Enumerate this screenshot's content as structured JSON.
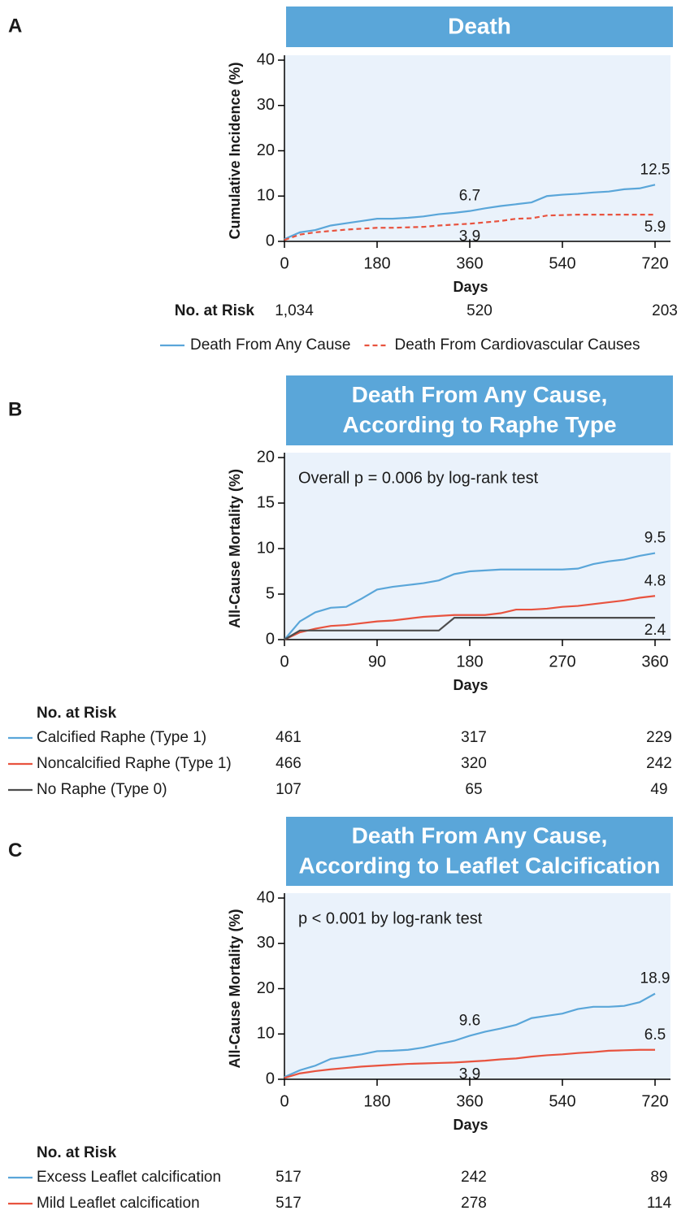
{
  "chart_data": [
    {
      "type": "line",
      "panel": "A",
      "title_lines": [
        "Death"
      ],
      "y_label": "Cumulative Incidence (%)",
      "x_label": "Days",
      "xlim": [
        0,
        750
      ],
      "xticks": [
        0,
        180,
        360,
        540,
        720
      ],
      "ylim": [
        0,
        40
      ],
      "yticks": [
        0,
        10,
        20,
        30,
        40
      ],
      "x": [
        0,
        30,
        60,
        90,
        120,
        150,
        180,
        210,
        240,
        270,
        300,
        330,
        360,
        390,
        420,
        450,
        480,
        510,
        540,
        570,
        600,
        630,
        660,
        690,
        720
      ],
      "series": [
        {
          "name": "Death From Any Cause",
          "color": "#5aa6d9",
          "dash": false,
          "values": [
            0.5,
            2,
            2.5,
            3.5,
            4,
            4.5,
            5,
            5,
            5.2,
            5.5,
            6,
            6.3,
            6.7,
            7.3,
            7.8,
            8.2,
            8.6,
            10,
            10.3,
            10.5,
            10.8,
            11,
            11.5,
            11.7,
            12.5
          ]
        },
        {
          "name": "Death From Cardiovascular Causes",
          "color": "#e8533f",
          "dash": true,
          "values": [
            0.3,
            1.5,
            2,
            2.3,
            2.6,
            2.8,
            3,
            3,
            3.1,
            3.2,
            3.5,
            3.7,
            3.9,
            4.2,
            4.5,
            5,
            5.1,
            5.7,
            5.8,
            5.9,
            5.9,
            5.9,
            5.9,
            5.9,
            5.9
          ]
        }
      ],
      "annotations": [
        {
          "text": "6.7",
          "x": 360,
          "y": 6.7,
          "pos": "above"
        },
        {
          "text": "3.9",
          "x": 360,
          "y": 3.9,
          "pos": "below"
        },
        {
          "text": "12.5",
          "x": 720,
          "y": 12.5,
          "pos": "above"
        },
        {
          "text": "5.9",
          "x": 720,
          "y": 5.9,
          "pos": "below"
        }
      ],
      "risk_label": "No. at Risk",
      "risk_x": [
        0,
        360,
        720
      ],
      "at_risk": [
        1034,
        520,
        203
      ],
      "at_risk_labels": [
        "1,034",
        "520",
        "203"
      ]
    },
    {
      "type": "line",
      "panel": "B",
      "title_lines": [
        "Death From Any Cause,",
        "According to Raphe Type"
      ],
      "y_label": "All-Cause Mortality (%)",
      "x_label": "Days",
      "xlim": [
        0,
        375
      ],
      "xticks": [
        0,
        90,
        180,
        270,
        360
      ],
      "ylim": [
        0,
        20
      ],
      "yticks": [
        0,
        5,
        10,
        15,
        20
      ],
      "note": "Overall p = 0.006 by log-rank test",
      "x": [
        0,
        15,
        30,
        45,
        60,
        75,
        90,
        105,
        120,
        135,
        150,
        165,
        180,
        195,
        210,
        225,
        240,
        255,
        270,
        285,
        300,
        315,
        330,
        345,
        360
      ],
      "series": [
        {
          "name": "Calcified Raphe (Type 1)",
          "color": "#5aa6d9",
          "dash": false,
          "values": [
            0,
            2,
            3,
            3.5,
            3.6,
            4.5,
            5.5,
            5.8,
            6,
            6.2,
            6.5,
            7.2,
            7.5,
            7.6,
            7.7,
            7.7,
            7.7,
            7.7,
            7.7,
            7.8,
            8.3,
            8.6,
            8.8,
            9.2,
            9.5
          ],
          "at_risk": [
            461,
            317,
            229
          ]
        },
        {
          "name": "Noncalcified Raphe (Type 1)",
          "color": "#e8533f",
          "dash": false,
          "values": [
            0,
            0.8,
            1.2,
            1.5,
            1.6,
            1.8,
            2,
            2.1,
            2.3,
            2.5,
            2.6,
            2.7,
            2.7,
            2.7,
            2.9,
            3.3,
            3.3,
            3.4,
            3.6,
            3.7,
            3.9,
            4.1,
            4.3,
            4.6,
            4.8
          ],
          "at_risk": [
            466,
            320,
            242
          ]
        },
        {
          "name": "No Raphe (Type 0)",
          "color": "#4d4d4d",
          "dash": false,
          "values": [
            0,
            1,
            1,
            1,
            1,
            1,
            1,
            1,
            1,
            1,
            1,
            2.4,
            2.4,
            2.4,
            2.4,
            2.4,
            2.4,
            2.4,
            2.4,
            2.4,
            2.4,
            2.4,
            2.4,
            2.4,
            2.4
          ],
          "at_risk": [
            107,
            65,
            49
          ]
        }
      ],
      "annotations": [
        {
          "text": "9.5",
          "x": 360,
          "y": 9.5,
          "pos": "above"
        },
        {
          "text": "4.8",
          "x": 360,
          "y": 4.8,
          "pos": "above"
        },
        {
          "text": "2.4",
          "x": 360,
          "y": 2.4,
          "pos": "below"
        }
      ],
      "risk_label": "No. at Risk",
      "risk_x": [
        0,
        180,
        360
      ]
    },
    {
      "type": "line",
      "panel": "C",
      "title_lines": [
        "Death From Any Cause,",
        "According to Leaflet Calcification"
      ],
      "y_label": "All-Cause Mortality (%)",
      "x_label": "Days",
      "xlim": [
        0,
        750
      ],
      "xticks": [
        0,
        180,
        360,
        540,
        720
      ],
      "ylim": [
        0,
        40
      ],
      "yticks": [
        0,
        10,
        20,
        30,
        40
      ],
      "note": "p < 0.001 by log-rank test",
      "x": [
        0,
        30,
        60,
        90,
        120,
        150,
        180,
        210,
        240,
        270,
        300,
        330,
        360,
        390,
        420,
        450,
        480,
        510,
        540,
        570,
        600,
        630,
        660,
        690,
        720
      ],
      "series": [
        {
          "name": "Excess Leaflet calcification",
          "color": "#5aa6d9",
          "dash": false,
          "values": [
            0.5,
            2,
            3,
            4.5,
            5,
            5.5,
            6.2,
            6.3,
            6.5,
            7,
            7.8,
            8.5,
            9.6,
            10.5,
            11.2,
            12,
            13.5,
            14,
            14.5,
            15.5,
            16,
            16,
            16.2,
            17,
            18.9
          ],
          "at_risk": [
            517,
            242,
            89
          ]
        },
        {
          "name": "Mild Leaflet calcification",
          "color": "#e8533f",
          "dash": false,
          "values": [
            0.3,
            1.3,
            1.8,
            2.2,
            2.5,
            2.8,
            3,
            3.2,
            3.4,
            3.5,
            3.6,
            3.7,
            3.9,
            4.1,
            4.4,
            4.6,
            5,
            5.3,
            5.5,
            5.8,
            6,
            6.3,
            6.4,
            6.5,
            6.5
          ],
          "at_risk": [
            517,
            278,
            114
          ]
        }
      ],
      "annotations": [
        {
          "text": "9.6",
          "x": 360,
          "y": 9.6,
          "pos": "above"
        },
        {
          "text": "3.9",
          "x": 360,
          "y": 3.9,
          "pos": "below"
        },
        {
          "text": "18.9",
          "x": 720,
          "y": 18.9,
          "pos": "above"
        },
        {
          "text": "6.5",
          "x": 720,
          "y": 6.5,
          "pos": "above"
        }
      ],
      "risk_label": "No. at Risk",
      "risk_x": [
        0,
        360,
        720
      ]
    }
  ]
}
